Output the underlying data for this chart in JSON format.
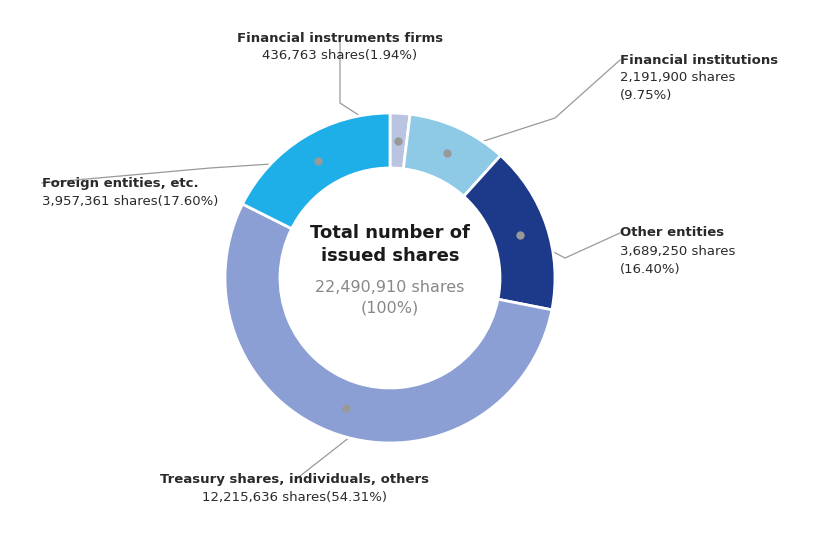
{
  "title_line1": "Total number of",
  "title_line2": "issued shares",
  "total_shares": "22,490,910 shares",
  "total_pct": "(100%)",
  "segments": [
    {
      "label": "Financial instruments firms",
      "line1": "Financial instruments firms",
      "line2": "436,763 shares(1.94%)",
      "value": 1.94,
      "color": "#b8c4e0"
    },
    {
      "label": "Financial institutions",
      "line1": "Financial institutions",
      "line2": "2,191,900 shares",
      "line3": "(9.75%)",
      "value": 9.75,
      "color": "#8ecae6"
    },
    {
      "label": "Other entities",
      "line1": "Other entities",
      "line2": "3,689,250 shares",
      "line3": "(16.40%)",
      "value": 16.4,
      "color": "#1d3a8a"
    },
    {
      "label": "Treasury shares, individuals, others",
      "line1": "Treasury shares, individuals, others",
      "line2": "12,215,636 shares(54.31%)",
      "value": 54.31,
      "color": "#8b9fd4"
    },
    {
      "label": "Foreign entities, etc.",
      "line1": "Foreign entities, etc.",
      "line2": "3,957,361 shares(17.60%)",
      "value": 17.6,
      "color": "#1eaee8"
    }
  ],
  "background_color": "#ffffff",
  "label_color": "#2a2a2a",
  "center_title_color": "#1a1a1a",
  "center_sub_color": "#888888",
  "connector_color": "#999999"
}
